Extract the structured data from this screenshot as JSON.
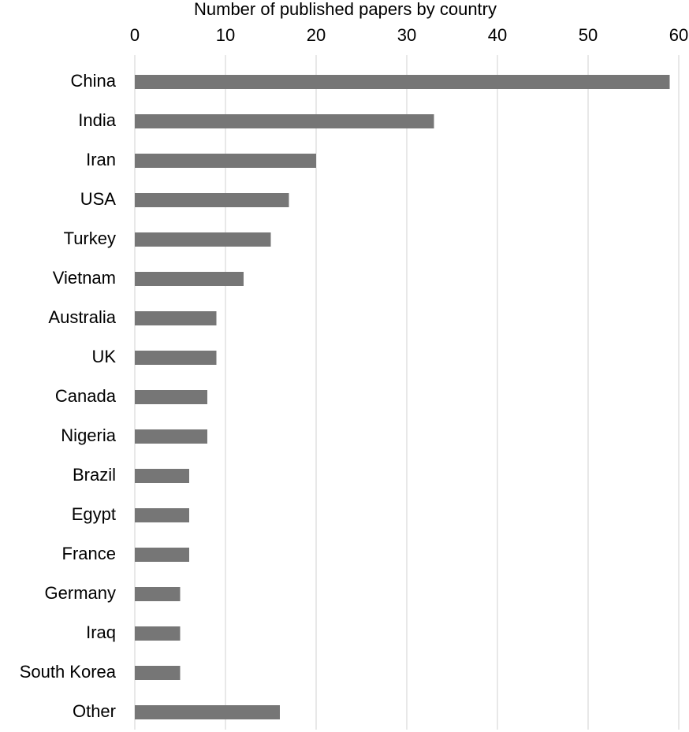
{
  "chart_data": {
    "type": "bar",
    "orientation": "horizontal",
    "title": "Number of published papers by country",
    "categories": [
      "China",
      "India",
      "Iran",
      "USA",
      "Turkey",
      "Vietnam",
      "Australia",
      "UK",
      "Canada",
      "Nigeria",
      "Brazil",
      "Egypt",
      "France",
      "Germany",
      "Iraq",
      "South Korea",
      "Other"
    ],
    "values": [
      59,
      33,
      20,
      17,
      15,
      12,
      9,
      9,
      8,
      8,
      6,
      6,
      6,
      5,
      5,
      5,
      16
    ],
    "color": "#767676",
    "xlim": [
      0,
      60
    ],
    "xticks": [
      0,
      10,
      20,
      30,
      40,
      50,
      60
    ],
    "grid": true
  }
}
